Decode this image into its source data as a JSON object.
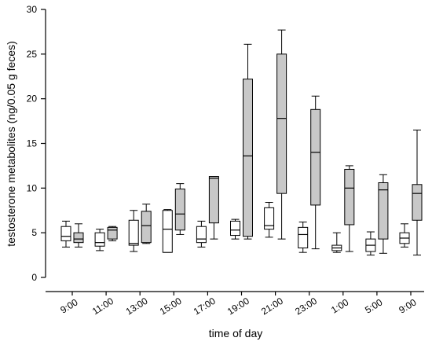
{
  "chart_data": {
    "type": "boxplot",
    "xlabel": "time of day",
    "ylabel": "testosterone metabolites (ng/0.05 g feces)",
    "ylim": [
      0,
      30
    ],
    "yticks": [
      0,
      5,
      10,
      15,
      20,
      25,
      30
    ],
    "categories": [
      "9:00",
      "11:00",
      "13:00",
      "15:00",
      "17:00",
      "19:00",
      "21:00",
      "23:00",
      "1:00",
      "5:00",
      "9:00"
    ],
    "grid": false,
    "legend": "none",
    "colors": {
      "series_white": "#ffffff",
      "series_gray": "#c8c8c8",
      "stroke": "#000000"
    },
    "series": [
      {
        "fill": "white",
        "boxes": [
          {
            "min": 3.4,
            "q1": 4.1,
            "median": 4.6,
            "q3": 5.7,
            "max": 6.3
          },
          {
            "min": 3.0,
            "q1": 3.5,
            "median": 3.9,
            "q3": 5.0,
            "max": 5.4
          },
          {
            "min": 2.9,
            "q1": 3.6,
            "median": 3.8,
            "q3": 6.4,
            "max": 7.5
          },
          {
            "min": 2.8,
            "q1": 2.8,
            "median": 5.4,
            "q3": 7.5,
            "max": 7.6
          },
          {
            "min": 3.4,
            "q1": 3.9,
            "median": 4.3,
            "q3": 5.7,
            "max": 6.3
          },
          {
            "min": 4.3,
            "q1": 4.7,
            "median": 5.3,
            "q3": 6.3,
            "max": 6.5
          },
          {
            "min": 4.5,
            "q1": 5.4,
            "median": 5.8,
            "q3": 7.8,
            "max": 8.4
          },
          {
            "min": 2.8,
            "q1": 3.3,
            "median": 4.8,
            "q3": 5.6,
            "max": 6.2
          },
          {
            "min": 2.8,
            "q1": 3.0,
            "median": 3.3,
            "q3": 3.6,
            "max": 5.0
          },
          {
            "min": 2.5,
            "q1": 2.9,
            "median": 3.6,
            "q3": 4.3,
            "max": 5.1
          },
          {
            "min": 3.4,
            "q1": 3.8,
            "median": 4.4,
            "q3": 5.0,
            "max": 6.0
          }
        ]
      },
      {
        "fill": "gray",
        "boxes": [
          {
            "min": 3.4,
            "q1": 3.9,
            "median": 4.3,
            "q3": 5.0,
            "max": 6.0
          },
          {
            "min": 4.1,
            "q1": 4.3,
            "median": 5.3,
            "q3": 5.6,
            "max": 5.7
          },
          {
            "min": 3.8,
            "q1": 3.9,
            "median": 5.8,
            "q3": 7.4,
            "max": 8.2
          },
          {
            "min": 4.8,
            "q1": 5.3,
            "median": 7.1,
            "q3": 9.9,
            "max": 10.5
          },
          {
            "min": 4.3,
            "q1": 6.1,
            "median": 11.1,
            "q3": 11.3,
            "max": 11.3
          },
          {
            "min": 4.3,
            "q1": 4.6,
            "median": 13.6,
            "q3": 22.2,
            "max": 26.1
          },
          {
            "min": 4.3,
            "q1": 9.4,
            "median": 17.8,
            "q3": 25.0,
            "max": 27.7
          },
          {
            "min": 3.2,
            "q1": 8.1,
            "median": 14.0,
            "q3": 18.8,
            "max": 20.3
          },
          {
            "min": 2.9,
            "q1": 5.9,
            "median": 10.0,
            "q3": 12.1,
            "max": 12.5
          },
          {
            "min": 2.7,
            "q1": 4.3,
            "median": 9.8,
            "q3": 10.6,
            "max": 11.5
          },
          {
            "min": 2.5,
            "q1": 6.4,
            "median": 9.4,
            "q3": 10.4,
            "max": 16.5
          }
        ]
      }
    ]
  }
}
